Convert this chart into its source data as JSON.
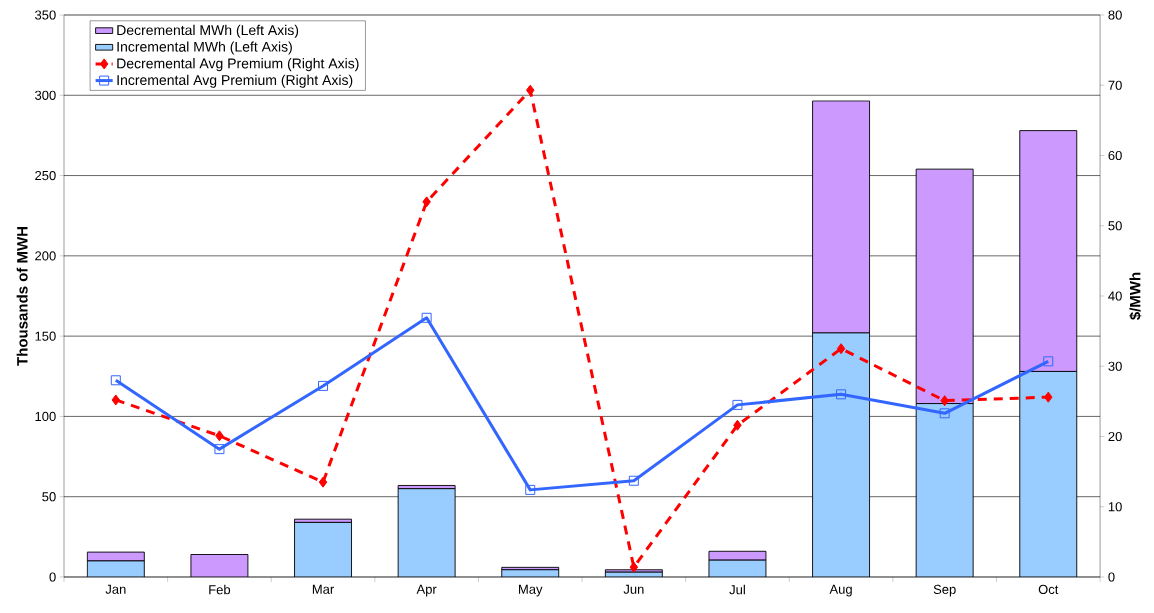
{
  "chart_data": {
    "type": "bar",
    "stacked": true,
    "ylabel": "Thousands of MWH",
    "y2label": "$/MWh",
    "categories": [
      "Jan",
      "Feb",
      "Mar",
      "Apr",
      "May",
      "Jun",
      "Jul",
      "Aug",
      "Sep",
      "Oct"
    ],
    "ylim": [
      0,
      350
    ],
    "yticks": [
      0,
      50,
      100,
      150,
      200,
      250,
      300,
      350
    ],
    "y2lim": [
      0,
      80
    ],
    "y2ticks": [
      0,
      10,
      20,
      30,
      40,
      50,
      60,
      70,
      80
    ],
    "grid": "y",
    "legend": "top left",
    "series": [
      {
        "name": "Incremental MWh (Left Axis)",
        "color": "#99ccff",
        "values": [
          10,
          0,
          34,
          55,
          4.5,
          3,
          10.5,
          152,
          108,
          128
        ]
      },
      {
        "name": "Decremental MWh (Left Axis)",
        "color": "#cc99ff",
        "values": [
          5.5,
          14,
          2,
          2,
          1.5,
          1.5,
          5.5,
          144.5,
          146,
          150
        ]
      },
      {
        "name": "Decremental Avg Premium (Right Axis)",
        "type": "line",
        "axis": "y2",
        "color": "#ff0000",
        "marker": "diamond",
        "line_style": "dashed",
        "values": [
          25.2,
          20.1,
          13.5,
          53.4,
          69.3,
          1.4,
          21.6,
          32.5,
          25.1,
          25.6
        ]
      },
      {
        "name": "Incremental Avg Premium (Right Axis)",
        "type": "line",
        "axis": "y2",
        "color": "#3366ff",
        "marker": "square",
        "line_style": "solid",
        "values": [
          28.0,
          18.2,
          27.2,
          36.9,
          12.4,
          13.7,
          24.5,
          26.0,
          23.3,
          30.7
        ]
      }
    ]
  }
}
